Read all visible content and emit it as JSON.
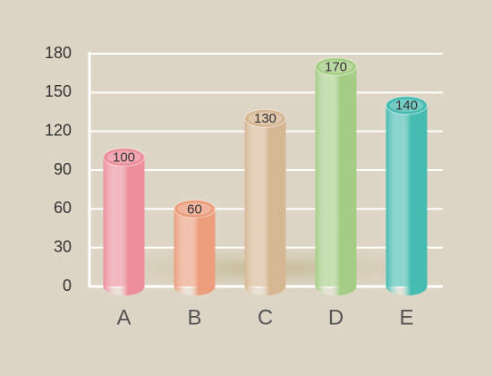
{
  "chart_data": {
    "type": "bar",
    "categories": [
      "A",
      "B",
      "C",
      "D",
      "E"
    ],
    "values": [
      100,
      60,
      130,
      170,
      140
    ],
    "colors": [
      "#ec8e9b",
      "#eb9d7c",
      "#d6b793",
      "#a6cd85",
      "#46bbb1"
    ],
    "ylim": [
      0,
      180
    ],
    "yticks": [
      0,
      30,
      60,
      90,
      120,
      150,
      180
    ],
    "grid": true
  }
}
